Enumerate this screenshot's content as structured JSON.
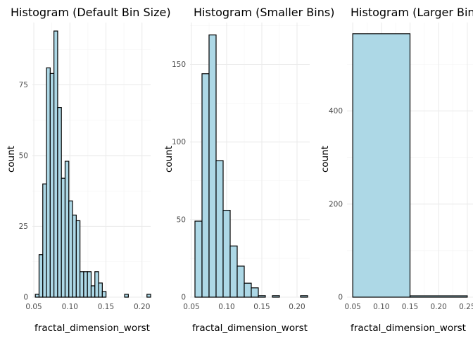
{
  "chart_data": [
    {
      "type": "bar",
      "title": "Histogram (Default Bin Size)",
      "xlabel": "fractal_dimension_worst",
      "ylabel": "count",
      "xlim": [
        0.048,
        0.212
      ],
      "ylim": [
        0,
        97
      ],
      "xticks": [
        0.05,
        0.1,
        0.15,
        0.2
      ],
      "xtick_labels": [
        "0.05",
        "0.10",
        "0.15",
        "0.20"
      ],
      "yticks": [
        0,
        25,
        50,
        75
      ],
      "ytick_labels": [
        "0",
        "25",
        "50",
        "75"
      ],
      "grid": true,
      "bin_start": 0.0521,
      "bin_width": 0.00516,
      "values": [
        1,
        15,
        40,
        81,
        79,
        94,
        67,
        42,
        48,
        34,
        29,
        27,
        9,
        9,
        9,
        4,
        9,
        5,
        2,
        0,
        0,
        0,
        0,
        0,
        1,
        0,
        0,
        0,
        0,
        0,
        1
      ]
    },
    {
      "type": "bar",
      "title": "Histogram (Smaller Bins)",
      "xlabel": "fractal_dimension_worst",
      "ylabel": "count",
      "xlim": [
        0.048,
        0.218
      ],
      "ylim": [
        0,
        177
      ],
      "xticks": [
        0.05,
        0.1,
        0.15,
        0.2
      ],
      "xtick_labels": [
        "0.05",
        "0.10",
        "0.15",
        "0.20"
      ],
      "yticks": [
        0,
        50,
        100,
        150
      ],
      "ytick_labels": [
        "0",
        "50",
        "100",
        "150"
      ],
      "grid": true,
      "bin_start": 0.055,
      "bin_width": 0.01,
      "values": [
        49,
        144,
        169,
        88,
        56,
        33,
        20,
        9,
        6,
        1,
        0,
        1,
        0,
        0,
        0,
        1
      ]
    },
    {
      "type": "bar",
      "title": "Histogram (Larger Bins)",
      "xlabel": "fractal_dimension_worst",
      "ylabel": "count",
      "xlim": [
        0.04,
        0.26
      ],
      "ylim": [
        0,
        590
      ],
      "xticks": [
        0.05,
        0.1,
        0.15,
        0.2,
        0.25
      ],
      "xtick_labels": [
        "0.05",
        "0.10",
        "0.15",
        "0.20",
        "0.25"
      ],
      "yticks": [
        0,
        200,
        400
      ],
      "ytick_labels": [
        "0",
        "200",
        "400"
      ],
      "grid": true,
      "bin_start": 0.05,
      "bin_width": 0.1,
      "values": [
        566,
        3
      ]
    }
  ]
}
